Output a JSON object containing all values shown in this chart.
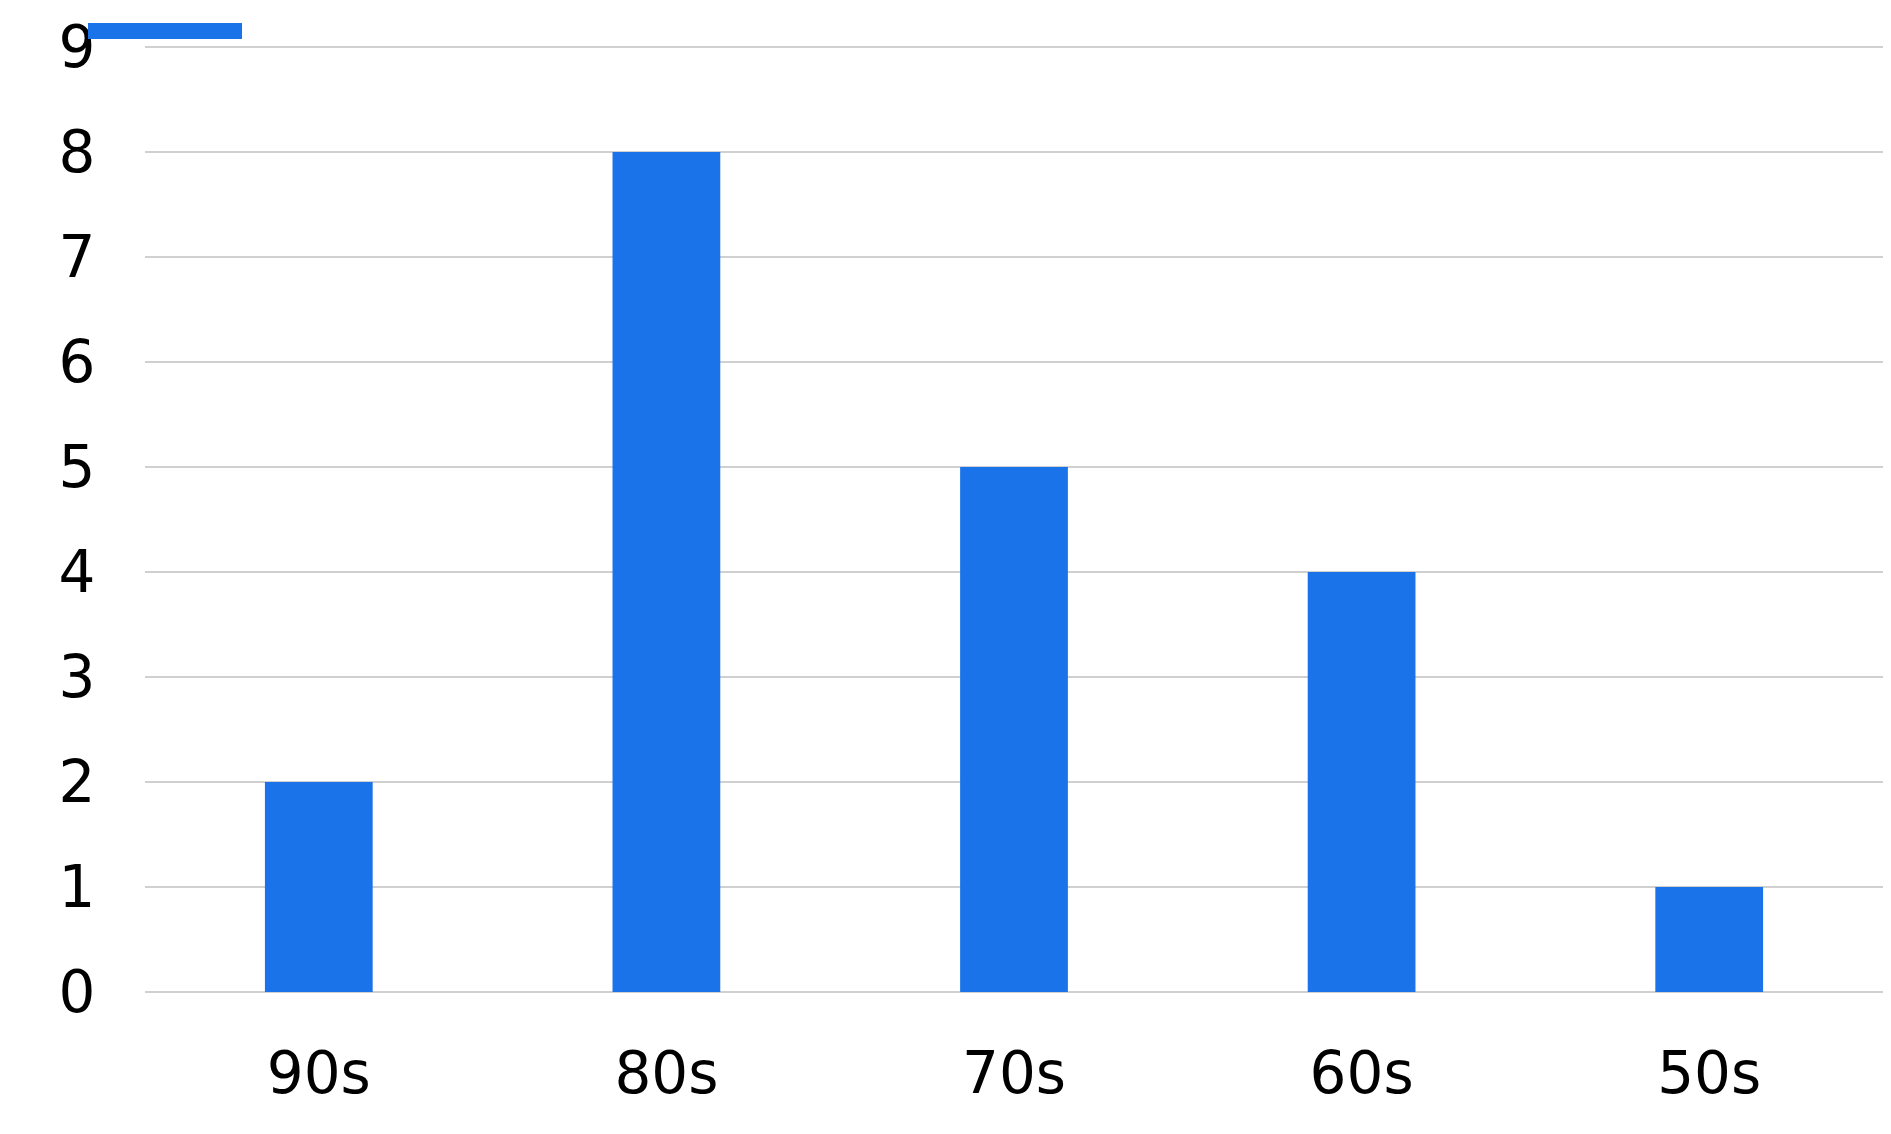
{
  "chart_data": {
    "type": "bar",
    "categories": [
      "90s",
      "80s",
      "70s",
      "60s",
      "50s"
    ],
    "series": [
      {
        "color": "#1a73e8",
        "values": [
          2,
          8,
          5,
          4,
          1
        ]
      }
    ],
    "ylim": [
      0,
      9
    ],
    "yticks": [
      0,
      1,
      2,
      3,
      4,
      5,
      6,
      7,
      8,
      9
    ],
    "grid": "y"
  }
}
